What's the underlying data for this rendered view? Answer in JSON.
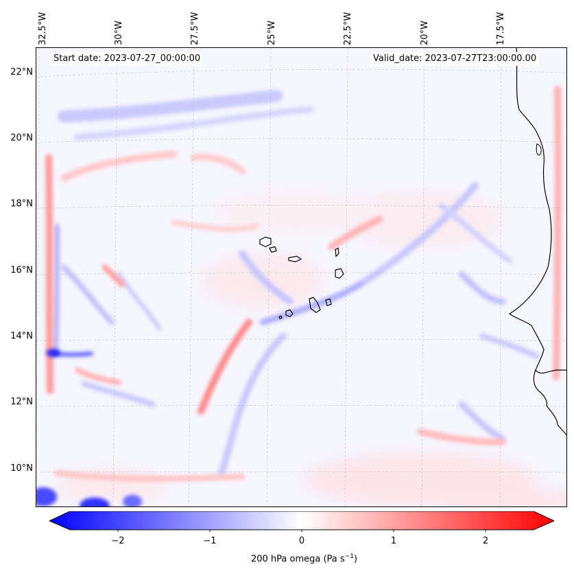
{
  "map": {
    "lon_labels": [
      "32.5°W",
      "30°W",
      "27.5°W",
      "25°W",
      "22.5°W",
      "20°W",
      "17.5°W"
    ],
    "lat_labels": [
      "22°N",
      "20°N",
      "18°N",
      "16°N",
      "14°N",
      "12°N",
      "10°N"
    ],
    "start_date": "Start date: 2023-07-27_00:00:00",
    "valid_date": "Valid_date: 2023-07-27T23:00:00.00",
    "variable": "200 hPa omega",
    "colormap": "bwr",
    "colors": {
      "negative": "#0000ff",
      "zero": "#ffffff",
      "positive": "#ff0000",
      "coast": "#000000"
    }
  },
  "colorbar": {
    "ticks": [
      "−2",
      "−1",
      "0",
      "1",
      "2"
    ],
    "label": "200 hPa omega (Pa s",
    "label_sup": "−1",
    "label_end": ")",
    "range": [
      -2.75,
      2.75
    ]
  }
}
